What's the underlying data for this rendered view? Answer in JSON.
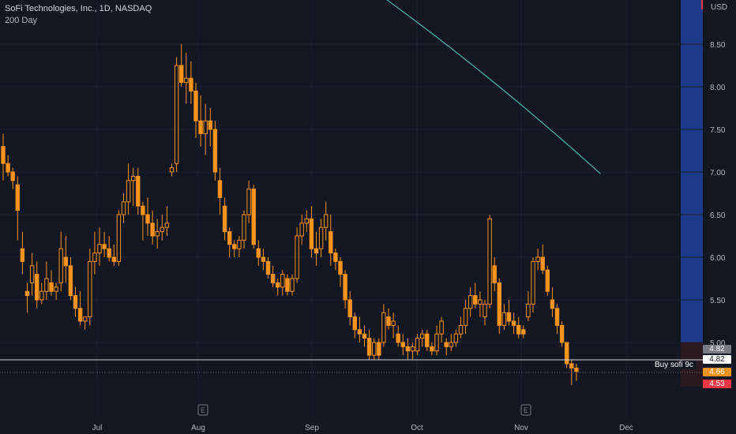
{
  "header": {
    "symbol_line": "SoFi Technologies, Inc., 1D, NASDAQ",
    "indicator_line": "200 Day"
  },
  "price_axis": {
    "currency": "USD",
    "ticks": [
      "8.50",
      "8.00",
      "7.50",
      "7.00",
      "6.50",
      "6.00",
      "5.50",
      "5.00"
    ]
  },
  "time_axis": {
    "labels": [
      "Jul",
      "Aug",
      "Sep",
      "Oct",
      "Nov",
      "Dec"
    ]
  },
  "events": [
    {
      "label": "E",
      "month": "Aug"
    },
    {
      "label": "E",
      "month": "Nov"
    }
  ],
  "order_line": {
    "label": "Buy sofi 9c",
    "price": 4.82
  },
  "price_tags": [
    {
      "value": "4.82",
      "bg": "#787b86",
      "fg": "#ffffff"
    },
    {
      "value": "4.82",
      "bg": "#ffffff",
      "fg": "#131722"
    },
    {
      "value": "4.66",
      "bg": "#f7931a",
      "fg": "#ffffff"
    },
    {
      "value": "4.53",
      "bg": "#f23645",
      "fg": "#ffffff"
    }
  ],
  "colors": {
    "candle": "#f7931a",
    "ma": "#4db6ac",
    "grid": "#1e222d",
    "text": "#b2b5be",
    "session": "#1e3a8a"
  },
  "chart_data": {
    "type": "candlestick",
    "title": "SoFi Technologies, Inc., 1D, NASDAQ",
    "ylim": [
      4.3,
      9.0
    ],
    "candles": [
      [
        7.3,
        7.45,
        6.9,
        7.1
      ],
      [
        7.1,
        7.2,
        6.95,
        7.0
      ],
      [
        7.0,
        7.05,
        6.8,
        6.9
      ],
      [
        6.85,
        6.95,
        6.2,
        6.55
      ],
      [
        6.1,
        6.3,
        5.8,
        5.95
      ],
      [
        5.6,
        5.7,
        5.35,
        5.55
      ],
      [
        5.7,
        6.05,
        5.55,
        5.9
      ],
      [
        5.8,
        5.95,
        5.4,
        5.5
      ],
      [
        5.5,
        5.7,
        5.45,
        5.6
      ],
      [
        5.6,
        5.95,
        5.5,
        5.75
      ],
      [
        5.7,
        5.85,
        5.55,
        5.6
      ],
      [
        5.6,
        5.7,
        5.5,
        5.65
      ],
      [
        5.7,
        6.3,
        5.6,
        6.1
      ],
      [
        6.0,
        6.25,
        5.7,
        5.9
      ],
      [
        5.9,
        6.0,
        5.5,
        5.55
      ],
      [
        5.55,
        5.65,
        5.3,
        5.4
      ],
      [
        5.4,
        5.6,
        5.2,
        5.25
      ],
      [
        5.25,
        5.3,
        5.15,
        5.3
      ],
      [
        5.3,
        6.1,
        5.2,
        5.95
      ],
      [
        5.95,
        6.3,
        5.8,
        6.05
      ],
      [
        6.05,
        6.35,
        5.9,
        6.15
      ],
      [
        6.15,
        6.3,
        6.0,
        6.1
      ],
      [
        6.1,
        6.25,
        5.95,
        6.0
      ],
      [
        6.0,
        6.15,
        5.9,
        5.95
      ],
      [
        5.95,
        6.55,
        5.9,
        6.5
      ],
      [
        6.5,
        6.75,
        6.4,
        6.65
      ],
      [
        6.65,
        7.1,
        6.5,
        6.9
      ],
      [
        6.9,
        7.05,
        6.6,
        6.95
      ],
      [
        6.95,
        7.05,
        6.5,
        6.6
      ],
      [
        6.6,
        6.65,
        6.2,
        6.5
      ],
      [
        6.5,
        6.7,
        6.25,
        6.4
      ],
      [
        6.4,
        6.55,
        6.15,
        6.25
      ],
      [
        6.25,
        6.45,
        6.1,
        6.3
      ],
      [
        6.3,
        6.5,
        6.2,
        6.35
      ],
      [
        6.35,
        6.6,
        6.25,
        6.4
      ],
      [
        7.0,
        7.1,
        6.95,
        7.05
      ],
      [
        7.1,
        8.35,
        7.0,
        8.25
      ],
      [
        8.25,
        8.5,
        8.0,
        8.05
      ],
      [
        8.05,
        8.4,
        7.8,
        8.1
      ],
      [
        8.1,
        8.3,
        7.8,
        7.95
      ],
      [
        7.95,
        8.05,
        7.4,
        7.6
      ],
      [
        7.6,
        7.9,
        7.3,
        7.45
      ],
      [
        7.45,
        7.8,
        7.2,
        7.6
      ],
      [
        7.6,
        7.75,
        7.3,
        7.5
      ],
      [
        7.5,
        7.6,
        6.9,
        7.0
      ],
      [
        6.9,
        7.05,
        6.5,
        6.7
      ],
      [
        6.6,
        6.7,
        6.2,
        6.3
      ],
      [
        6.3,
        6.35,
        6.0,
        6.15
      ],
      [
        6.15,
        6.2,
        6.0,
        6.1
      ],
      [
        6.1,
        6.25,
        6.0,
        6.2
      ],
      [
        6.2,
        6.55,
        6.1,
        6.5
      ],
      [
        6.5,
        6.9,
        6.4,
        6.8
      ],
      [
        6.8,
        6.85,
        6.1,
        6.15
      ],
      [
        6.1,
        6.2,
        5.9,
        6.0
      ],
      [
        6.0,
        6.1,
        5.85,
        5.95
      ],
      [
        5.95,
        6.0,
        5.75,
        5.8
      ],
      [
        5.8,
        5.9,
        5.65,
        5.7
      ],
      [
        5.7,
        5.75,
        5.55,
        5.65
      ],
      [
        5.65,
        5.85,
        5.55,
        5.8
      ],
      [
        5.75,
        5.8,
        5.55,
        5.6
      ],
      [
        5.6,
        5.8,
        5.55,
        5.75
      ],
      [
        5.75,
        6.35,
        5.7,
        6.25
      ],
      [
        6.25,
        6.5,
        6.15,
        6.4
      ],
      [
        6.4,
        6.55,
        6.3,
        6.45
      ],
      [
        6.45,
        6.6,
        6.0,
        6.1
      ],
      [
        6.1,
        6.3,
        5.9,
        6.05
      ],
      [
        6.1,
        6.45,
        6.0,
        6.35
      ],
      [
        6.35,
        6.65,
        6.2,
        6.5
      ],
      [
        6.3,
        6.5,
        5.9,
        6.05
      ],
      [
        6.05,
        6.1,
        5.85,
        5.95
      ],
      [
        5.95,
        6.0,
        5.65,
        5.8
      ],
      [
        5.8,
        5.85,
        5.4,
        5.5
      ],
      [
        5.5,
        5.6,
        5.2,
        5.3
      ],
      [
        5.3,
        5.35,
        5.05,
        5.15
      ],
      [
        5.15,
        5.3,
        5.0,
        5.1
      ],
      [
        5.1,
        5.2,
        4.95,
        5.05
      ],
      [
        5.05,
        5.15,
        4.8,
        4.85
      ],
      [
        4.85,
        5.05,
        4.8,
        5.0
      ],
      [
        5.0,
        5.05,
        4.8,
        4.85
      ],
      [
        5.0,
        5.45,
        4.95,
        5.35
      ],
      [
        5.3,
        5.4,
        5.15,
        5.2
      ],
      [
        5.2,
        5.35,
        5.05,
        5.25
      ],
      [
        5.1,
        5.2,
        4.95,
        5.0
      ],
      [
        5.0,
        5.1,
        4.85,
        4.95
      ],
      [
        4.95,
        5.05,
        4.8,
        4.9
      ],
      [
        4.9,
        5.0,
        4.8,
        4.95
      ],
      [
        4.9,
        5.1,
        4.85,
        5.05
      ],
      [
        5.05,
        5.15,
        4.95,
        5.1
      ],
      [
        5.1,
        5.15,
        4.9,
        4.95
      ],
      [
        4.95,
        5.0,
        4.85,
        4.9
      ],
      [
        4.9,
        5.2,
        4.85,
        5.1
      ],
      [
        5.1,
        5.3,
        5.0,
        5.25
      ],
      [
        5.0,
        5.05,
        4.85,
        4.95
      ],
      [
        4.95,
        5.1,
        4.9,
        5.0
      ],
      [
        5.0,
        5.15,
        4.95,
        5.1
      ],
      [
        5.1,
        5.3,
        5.05,
        5.2
      ],
      [
        5.2,
        5.5,
        5.1,
        5.4
      ],
      [
        5.4,
        5.65,
        5.3,
        5.55
      ],
      [
        5.55,
        5.7,
        5.4,
        5.45
      ],
      [
        5.45,
        5.6,
        5.3,
        5.5
      ],
      [
        5.3,
        5.5,
        5.2,
        5.45
      ],
      [
        5.45,
        6.5,
        5.4,
        6.45
      ],
      [
        5.9,
        6.0,
        5.6,
        5.7
      ],
      [
        5.7,
        5.75,
        5.1,
        5.2
      ],
      [
        5.2,
        5.45,
        5.15,
        5.35
      ],
      [
        5.35,
        5.5,
        5.2,
        5.25
      ],
      [
        5.25,
        5.35,
        5.1,
        5.2
      ],
      [
        5.2,
        5.3,
        5.05,
        5.1
      ],
      [
        5.15,
        5.2,
        5.05,
        5.1
      ],
      [
        5.3,
        5.6,
        5.25,
        5.45
      ],
      [
        5.45,
        6.0,
        5.35,
        5.95
      ],
      [
        5.95,
        6.1,
        5.85,
        6.0
      ],
      [
        6.0,
        6.15,
        5.8,
        5.85
      ],
      [
        5.85,
        5.9,
        5.55,
        5.6
      ],
      [
        5.5,
        5.65,
        5.3,
        5.4
      ],
      [
        5.4,
        5.45,
        5.1,
        5.2
      ],
      [
        5.2,
        5.25,
        4.95,
        5.0
      ],
      [
        5.0,
        5.0,
        4.7,
        4.75
      ],
      [
        4.75,
        4.8,
        4.5,
        4.7
      ],
      [
        4.7,
        4.75,
        4.55,
        4.66
      ]
    ],
    "moving_average_200": {
      "name": "200 Day",
      "from_index": 74,
      "to_index": 124,
      "start": 9.25,
      "end": 6.98
    }
  }
}
